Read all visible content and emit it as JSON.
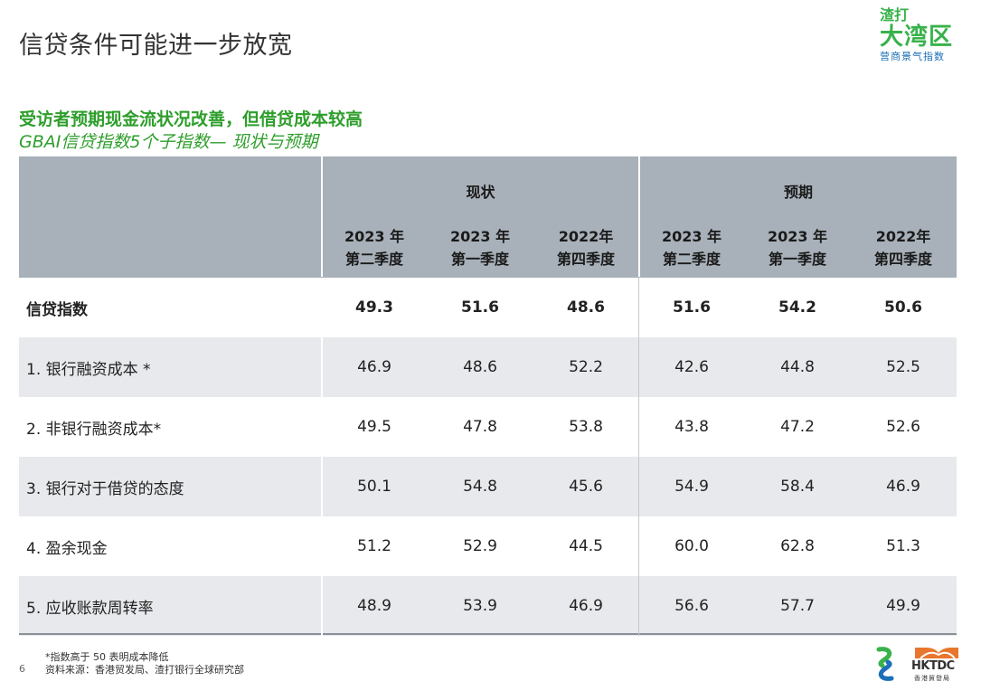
{
  "page": {
    "title": "信贷条件可能进一步放宽",
    "number": "6"
  },
  "logo": {
    "line1": "渣打",
    "line2": "大湾区",
    "line3": "营商景气指数"
  },
  "subtitle": {
    "main": "受访者预期现金流状况改善，但借贷成本较高",
    "sub": "GBAI信贷指数5个子指数— 现状与预期"
  },
  "table": {
    "groups": [
      "现状",
      "预期"
    ],
    "columns": [
      [
        "2023 年",
        "第二季度"
      ],
      [
        "2023 年",
        "第一季度"
      ],
      [
        "2022年",
        "第四季度"
      ],
      [
        "2023 年",
        "第二季度"
      ],
      [
        "2023 年",
        "第一季度"
      ],
      [
        "2022年",
        "第四季度"
      ]
    ],
    "rows": [
      {
        "label": "信贷指数",
        "values": [
          "49.3",
          "51.6",
          "48.6",
          "51.6",
          "54.2",
          "50.6"
        ]
      },
      {
        "label": "1. 银行融资成本 *",
        "values": [
          "46.9",
          "48.6",
          "52.2",
          "42.6",
          "44.8",
          "52.5"
        ]
      },
      {
        "label": "2. 非银行融资成本*",
        "values": [
          "49.5",
          "47.8",
          "53.8",
          "43.8",
          "47.2",
          "52.6"
        ]
      },
      {
        "label": "3. 银行对于借贷的态度",
        "values": [
          "50.1",
          "54.8",
          "45.6",
          "54.9",
          "58.4",
          "46.9"
        ]
      },
      {
        "label": "4. 盈余现金",
        "values": [
          "51.2",
          "52.9",
          "44.5",
          "60.0",
          "62.8",
          "51.3"
        ]
      },
      {
        "label": "5. 应收账款周转率",
        "values": [
          "48.9",
          "53.9",
          "46.9",
          "56.6",
          "57.7",
          "49.9"
        ]
      }
    ]
  },
  "footnote": {
    "line1": "*指数高于 50 表明成本降低",
    "line2": "资料来源：香港贸发局、渣打银行全球研究部"
  },
  "brand": {
    "hktdc": "HKTDC",
    "hktdc_sub": "香港貿發局"
  },
  "colors": {
    "accent_green": "#2e9e2b",
    "header_grey": "#a8b0b9",
    "row_shade": "#e7e9ec"
  }
}
